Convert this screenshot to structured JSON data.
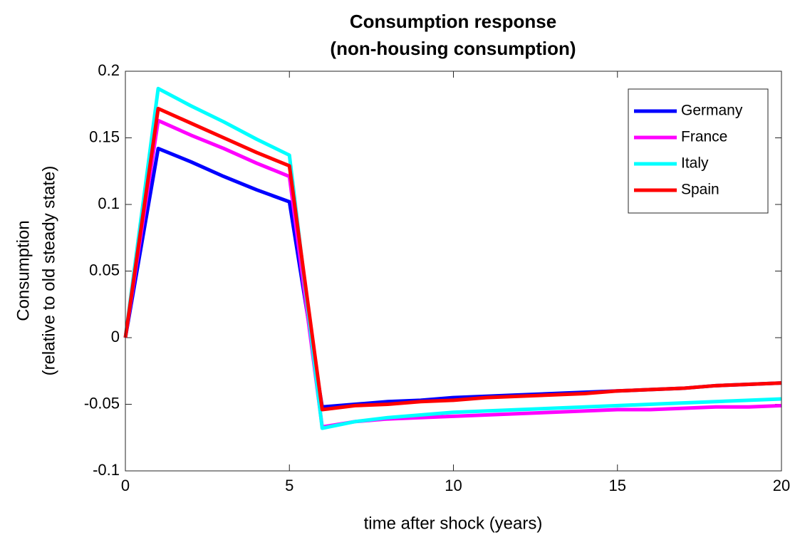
{
  "chart_data": {
    "type": "line",
    "title_lines": [
      "Consumption response",
      "(non-housing consumption)"
    ],
    "x_label": "time after shock (years)",
    "y_label_lines": [
      "Consumption",
      "(relative to old steady state)"
    ],
    "x": [
      0,
      1,
      2,
      3,
      4,
      5,
      6,
      7,
      8,
      9,
      10,
      11,
      12,
      13,
      14,
      15,
      16,
      17,
      18,
      19,
      20
    ],
    "series": [
      {
        "name": "Germany",
        "color": "#0000ff",
        "values": [
          0,
          0.142,
          0.132,
          0.121,
          0.111,
          0.102,
          -0.052,
          -0.05,
          -0.048,
          -0.047,
          -0.045,
          -0.044,
          -0.043,
          -0.042,
          -0.041,
          -0.04,
          -0.039,
          -0.038,
          -0.036,
          -0.035,
          -0.034
        ]
      },
      {
        "name": "France",
        "color": "#ff00ff",
        "values": [
          0,
          0.163,
          0.152,
          0.142,
          0.131,
          0.121,
          -0.067,
          -0.063,
          -0.061,
          -0.06,
          -0.059,
          -0.058,
          -0.057,
          -0.056,
          -0.055,
          -0.054,
          -0.054,
          -0.053,
          -0.052,
          -0.052,
          -0.051
        ]
      },
      {
        "name": "Italy",
        "color": "#00ffff",
        "values": [
          0,
          0.187,
          0.174,
          0.162,
          0.149,
          0.137,
          -0.068,
          -0.063,
          -0.06,
          -0.058,
          -0.056,
          -0.055,
          -0.054,
          -0.053,
          -0.052,
          -0.051,
          -0.05,
          -0.049,
          -0.048,
          -0.047,
          -0.046
        ]
      },
      {
        "name": "Spain",
        "color": "#ff0000",
        "values": [
          0,
          0.172,
          0.161,
          0.15,
          0.139,
          0.129,
          -0.054,
          -0.051,
          -0.05,
          -0.048,
          -0.047,
          -0.045,
          -0.044,
          -0.043,
          -0.042,
          -0.04,
          -0.039,
          -0.038,
          -0.036,
          -0.035,
          -0.034
        ]
      }
    ],
    "xlim": [
      0,
      20
    ],
    "xticks": [
      0,
      5,
      10,
      15,
      20
    ],
    "ylim": [
      -0.1,
      0.2
    ],
    "yticks": [
      -0.1,
      -0.05,
      0,
      0.05,
      0.1,
      0.15,
      0.2
    ],
    "legend": "upper right"
  }
}
